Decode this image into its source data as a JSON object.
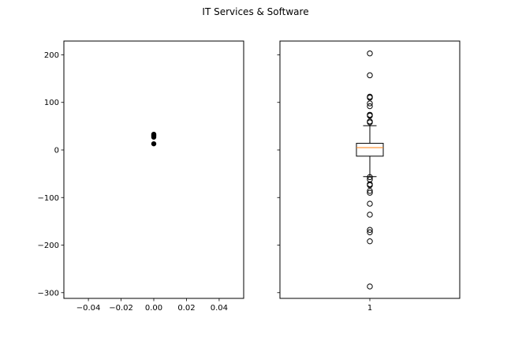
{
  "chart_data": {
    "title": "IT Services & Software",
    "axes": [
      {
        "type": "scatter",
        "xlim": [
          -0.055,
          0.055
        ],
        "ylim": [
          -312,
          229
        ],
        "xticks": [
          -0.04,
          -0.02,
          0.0,
          0.02,
          0.04
        ],
        "xtick_labels": [
          "−0.04",
          "−0.02",
          "0.00",
          "0.02",
          "0.04"
        ],
        "yticks": [
          200,
          100,
          0,
          -100,
          -200,
          -300
        ],
        "ytick_labels": [
          "200",
          "100",
          "0",
          "−100",
          "−200",
          "−300"
        ],
        "points": [
          {
            "x": 0.0,
            "y": 33
          },
          {
            "x": 0.0,
            "y": 31
          },
          {
            "x": 0.0,
            "y": 29
          },
          {
            "x": 0.0,
            "y": 27
          },
          {
            "x": 0.0,
            "y": 13
          }
        ],
        "marker_color": "#000000"
      },
      {
        "type": "box",
        "xlim": [
          0.5,
          1.5
        ],
        "ylim": [
          -312,
          229
        ],
        "xticks": [
          1
        ],
        "xtick_labels": [
          "1"
        ],
        "yticks": [
          200,
          100,
          0,
          -100,
          -200,
          -300
        ],
        "ytick_labels_visible": false,
        "box": {
          "position": 1,
          "q1": -13,
          "median": 5,
          "q3": 14,
          "whisker_low": -56,
          "whisker_high": 51,
          "fliers": [
            203,
            157,
            112,
            110,
            98,
            92,
            74,
            72,
            60,
            58,
            -57,
            -62,
            -72,
            -74,
            -86,
            -90,
            -113,
            -136,
            -168,
            -173,
            -192,
            -287
          ]
        },
        "median_color": "#ff7f0e"
      }
    ]
  }
}
